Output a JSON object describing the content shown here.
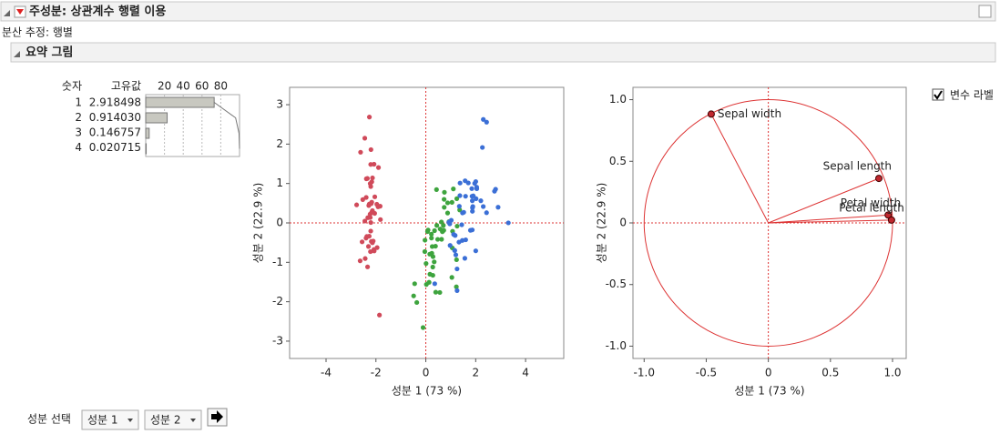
{
  "header": {
    "title": "주성분: 상관계수 행렬 이용",
    "estimate": "분산 추정: 행별",
    "section": "요약 그림"
  },
  "eigen_table": {
    "headers": [
      "숫자",
      "고유값"
    ],
    "rows": [
      [
        "1",
        "2.918498"
      ],
      [
        "2",
        "0.914030"
      ],
      [
        "3",
        "0.146757"
      ],
      [
        "4",
        "0.020715"
      ]
    ]
  },
  "controls": {
    "checkbox": "변수 라벨",
    "select_label": "성분 선택",
    "select_x": "성분 1",
    "select_y": "성분 2"
  },
  "chart_data": [
    {
      "type": "hbar",
      "values": [
        72.96,
        22.85,
        3.67,
        0.52
      ],
      "cumulative": [
        72.96,
        95.81,
        99.48,
        100
      ],
      "xlim": [
        0,
        100
      ],
      "xticks": [
        20,
        40,
        60,
        80
      ],
      "color": "#c8c8c0",
      "grid": true
    },
    {
      "type": "scatter",
      "xlabel": "성분 1  (73 %)",
      "ylabel": "성분 2  (22.9 %)",
      "xlim": [
        -5.46,
        5.53
      ],
      "ylim": [
        -3.44,
        3.44
      ],
      "xticks": [
        -4,
        -2,
        0,
        2,
        4
      ],
      "yticks": [
        -3,
        -2,
        -1,
        0,
        1,
        2,
        3
      ],
      "series": [
        {
          "color": "#d04a5a",
          "x": [
            -2.264,
            -2.081,
            -2.364,
            -2.299,
            -2.39,
            -2.076,
            -2.444,
            -2.233,
            -2.335,
            -2.184,
            -2.166,
            -2.326,
            -2.218,
            -2.633,
            -2.199,
            -2.262,
            -2.208,
            -2.19,
            -1.898,
            -2.343,
            -1.914,
            -2.207,
            -2.774,
            -1.819,
            -2.228,
            -1.952,
            -2.051,
            -2.168,
            -2.14,
            -2.269,
            -2.14,
            -1.831,
            -2.615,
            -2.446,
            -2.109,
            -2.208,
            -2.045,
            -2.527,
            -2.43,
            -2.17,
            -2.286,
            -1.858,
            -2.554,
            -1.964,
            -2.137,
            -2.07,
            -2.384,
            -2.395,
            -2.229,
            -2.205
          ],
          "values": [
            0.48,
            -0.674,
            -0.342,
            -0.597,
            0.647,
            1.489,
            0.048,
            0.223,
            -1.115,
            -0.469,
            1.043,
            0.133,
            -0.729,
            -0.962,
            1.86,
            2.686,
            1.484,
            0.489,
            1.405,
            1.128,
            0.409,
            0.924,
            0.458,
            0.085,
            0.137,
            -0.626,
            0.242,
            0.527,
            0.313,
            -0.337,
            -0.504,
            0.424,
            1.794,
            2.15,
            -0.46,
            -0.206,
            0.662,
            0.592,
            -0.904,
            0.269,
            0.442,
            -2.337,
            -0.48,
            0.473,
            1.142,
            -0.711,
            1.12,
            -0.386,
            0.998,
            0.01
          ]
        },
        {
          "color": "#3ea43e",
          "x": [
            1.104,
            0.733,
            1.242,
            0.397,
            1.072,
            0.388,
            0.746,
            -0.488,
            0.928,
            0.011,
            -0.11,
            0.44,
            0.562,
            0.72,
            -0.033,
            0.875,
            0.35,
            0.158,
            1.225,
            0.165,
            0.738,
            0.476,
            1.232,
            0.632,
            0.703,
            0.874,
            1.256,
            1.358,
            0.665,
            -0.04,
            0.131,
            0.023,
            0.241,
            1.061,
            0.224,
            0.429,
            1.049,
            1.045,
            0.069,
            0.283,
            0.279,
            0.625,
            0.336,
            -0.362,
            0.289,
            0.091,
            0.227,
            0.576,
            -0.447,
            0.257
          ],
          "values": [
            0.863,
            0.598,
            0.615,
            -1.758,
            -0.212,
            -0.591,
            0.777,
            -1.852,
            0.032,
            -1.03,
            -2.655,
            -0.063,
            -1.765,
            -0.187,
            -0.438,
            0.509,
            -0.196,
            -0.792,
            -1.622,
            -1.302,
            0.396,
            -0.417,
            -0.934,
            -0.416,
            -0.064,
            0.251,
            -0.082,
            0.329,
            -0.224,
            -0.727,
            -1.507,
            -1.561,
            -0.771,
            -0.634,
            -0.286,
            0.845,
            0.522,
            -1.382,
            -0.219,
            -1.329,
            -1.12,
            0.025,
            -0.988,
            -2.019,
            -0.856,
            -0.181,
            -0.385,
            -0.155,
            -1.543,
            -0.599
          ]
        },
        {
          "color": "#3b6fd6",
          "x": [
            1.844,
            1.158,
            2.206,
            1.441,
            1.868,
            2.754,
            0.358,
            2.303,
            2.002,
            2.268,
            1.366,
            1.599,
            1.885,
            1.253,
            1.464,
            1.593,
            1.471,
            2.437,
            3.309,
            1.254,
            2.04,
            0.974,
            2.898,
            1.33,
            1.704,
            1.958,
            1.176,
            1.02,
            1.789,
            1.864,
            2.435,
            2.305,
            1.862,
            1.115,
            1.203,
            2.798,
            1.576,
            1.343,
            0.924,
            1.853,
            2.016,
            1.903,
            1.158,
            2.043,
            2.002,
            1.87,
            1.565,
            1.521,
            1.373,
            0.961
          ],
          "values": [
            0.87,
            -0.699,
            0.562,
            -0.047,
            0.295,
            0.804,
            -1.543,
            0.416,
            -0.709,
            1.915,
            0.692,
            -0.428,
            0.415,
            -1.167,
            -0.445,
            0.677,
            0.253,
            2.557,
            0.002,
            -1.717,
            0.907,
            -0.571,
            0.398,
            -0.487,
            1.014,
            1.003,
            -0.318,
            0.066,
            -0.187,
            0.563,
            0.259,
            2.626,
            -0.178,
            -0.292,
            -0.811,
            0.856,
            1.069,
            0.421,
            0.017,
            0.676,
            0.614,
            0.686,
            -0.699,
            0.867,
            1.049,
            0.386,
            -0.897,
            0.269,
            1.011,
            -0.024
          ]
        }
      ]
    },
    {
      "type": "loading",
      "xlabel": "성분 1  (73 %)",
      "ylabel": "성분 2  (22.9 %)",
      "xlim": [
        -1.09,
        1.11
      ],
      "ylim": [
        -1.1,
        1.1
      ],
      "xticks": [
        {
          "value": -1,
          "label": "-1.0"
        },
        {
          "value": -0.5,
          "label": "-0.5"
        },
        0,
        0.5,
        {
          "value": 1,
          "label": "1.0"
        }
      ],
      "yticks": [
        {
          "value": -1,
          "label": "-1.0"
        },
        {
          "value": -0.5,
          "label": "-0.5"
        },
        0,
        0.5,
        {
          "value": 1,
          "label": "1.0"
        }
      ],
      "color": "#c0282f",
      "labels": [
        "Sepal width",
        "Sepal length",
        "Petal width",
        "Petal length"
      ],
      "x": [
        -0.46,
        0.89,
        0.965,
        0.992
      ],
      "values": [
        0.883,
        0.361,
        0.064,
        0.023
      ]
    }
  ]
}
